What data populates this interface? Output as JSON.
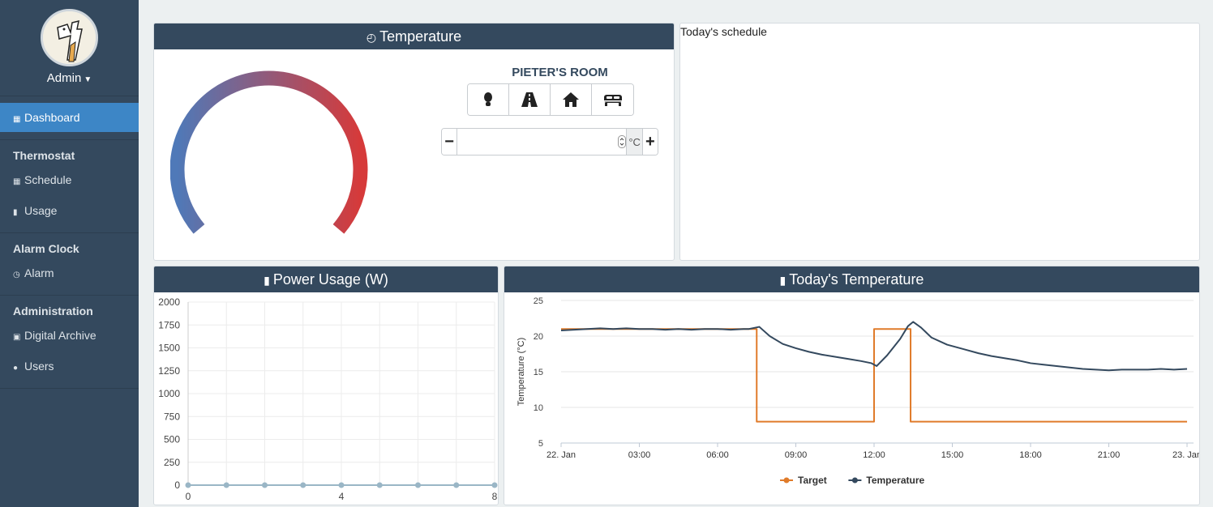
{
  "sidebar": {
    "user": {
      "name": "Admin"
    },
    "nav": [
      {
        "label": "Dashboard",
        "icon": "grid-icon",
        "active": true
      },
      {
        "section": "Thermostat"
      },
      {
        "label": "Schedule",
        "icon": "calendar-icon"
      },
      {
        "label": "Usage",
        "icon": "bar-chart-icon"
      },
      {
        "section": "Alarm Clock"
      },
      {
        "label": "Alarm",
        "icon": "clock-icon"
      },
      {
        "section": "Administration"
      },
      {
        "label": "Digital Archive",
        "icon": "briefcase-icon"
      },
      {
        "label": "Users",
        "icon": "user-icon"
      }
    ]
  },
  "temperature_panel": {
    "title": "Temperature",
    "room": "PIETER'S ROOM",
    "modes": [
      "foot-icon",
      "road-icon",
      "home-icon",
      "bed-icon"
    ],
    "setpoint": {
      "value": "",
      "unit": "°C",
      "minus": "−",
      "plus": "+"
    },
    "gauge_colors": {
      "low": "#4f79b8",
      "high": "#d63a3a"
    }
  },
  "schedule_panel": {
    "title": "Today's schedule"
  },
  "power_panel": {
    "title": "Power Usage (W)",
    "chart_data": {
      "type": "line",
      "x": [
        0,
        1,
        2,
        3,
        4,
        5,
        6,
        7,
        8
      ],
      "series": [
        {
          "values": [
            0,
            0,
            0,
            0,
            0,
            0,
            0,
            0,
            0
          ]
        }
      ],
      "xticks": [
        "0",
        "4",
        "8"
      ],
      "yticks": [
        "0",
        "250",
        "500",
        "750",
        "1000",
        "1250",
        "1500",
        "1750",
        "2000"
      ],
      "xlim": [
        0,
        8
      ],
      "ylim": [
        0,
        2000
      ],
      "grid": true,
      "color": "#9ab6c6"
    }
  },
  "today_panel": {
    "title": "Today's Temperature",
    "chart_data": {
      "type": "line",
      "ylabel": "Temperature (°C)",
      "x_hours_ticks": [
        "22. Jan",
        "03:00",
        "06:00",
        "09:00",
        "12:00",
        "15:00",
        "18:00",
        "21:00",
        "23. Jan"
      ],
      "yticks": [
        "5",
        "10",
        "15",
        "20",
        "25"
      ],
      "xlim": [
        0,
        24
      ],
      "ylim": [
        5,
        25
      ],
      "grid": true,
      "legend": "bottom-center",
      "series": [
        {
          "name": "Target",
          "color": "#e07b2a",
          "step": true,
          "points": [
            [
              0,
              21
            ],
            [
              7.5,
              21
            ],
            [
              7.5,
              8
            ],
            [
              12,
              8
            ],
            [
              12,
              21
            ],
            [
              13.4,
              21
            ],
            [
              13.4,
              8
            ],
            [
              24,
              8
            ]
          ]
        },
        {
          "name": "Temperature",
          "color": "#34495e",
          "points": [
            [
              0,
              20.8
            ],
            [
              0.5,
              20.9
            ],
            [
              1,
              21.0
            ],
            [
              1.5,
              21.1
            ],
            [
              2,
              21.0
            ],
            [
              2.5,
              21.1
            ],
            [
              3,
              21.0
            ],
            [
              3.5,
              21.0
            ],
            [
              4,
              20.9
            ],
            [
              4.5,
              21.0
            ],
            [
              5,
              20.9
            ],
            [
              5.5,
              21.0
            ],
            [
              6,
              21.0
            ],
            [
              6.5,
              20.9
            ],
            [
              7,
              21.0
            ],
            [
              7.2,
              21.0
            ],
            [
              7.6,
              21.3
            ],
            [
              8,
              20.0
            ],
            [
              8.5,
              18.9
            ],
            [
              9,
              18.3
            ],
            [
              9.5,
              17.8
            ],
            [
              10,
              17.4
            ],
            [
              10.5,
              17.1
            ],
            [
              11,
              16.8
            ],
            [
              11.5,
              16.5
            ],
            [
              11.9,
              16.2
            ],
            [
              12.1,
              15.8
            ],
            [
              12.5,
              17.3
            ],
            [
              13,
              19.6
            ],
            [
              13.3,
              21.4
            ],
            [
              13.5,
              22.0
            ],
            [
              13.8,
              21.2
            ],
            [
              14.2,
              19.8
            ],
            [
              14.8,
              18.8
            ],
            [
              15.5,
              18.1
            ],
            [
              16,
              17.6
            ],
            [
              16.5,
              17.2
            ],
            [
              17,
              16.9
            ],
            [
              17.5,
              16.6
            ],
            [
              18,
              16.2
            ],
            [
              18.5,
              16.0
            ],
            [
              19,
              15.8
            ],
            [
              19.5,
              15.6
            ],
            [
              20,
              15.4
            ],
            [
              20.5,
              15.3
            ],
            [
              21,
              15.2
            ],
            [
              21.5,
              15.3
            ],
            [
              22,
              15.3
            ],
            [
              22.5,
              15.3
            ],
            [
              23,
              15.4
            ],
            [
              23.5,
              15.3
            ],
            [
              24,
              15.4
            ]
          ]
        }
      ]
    }
  }
}
